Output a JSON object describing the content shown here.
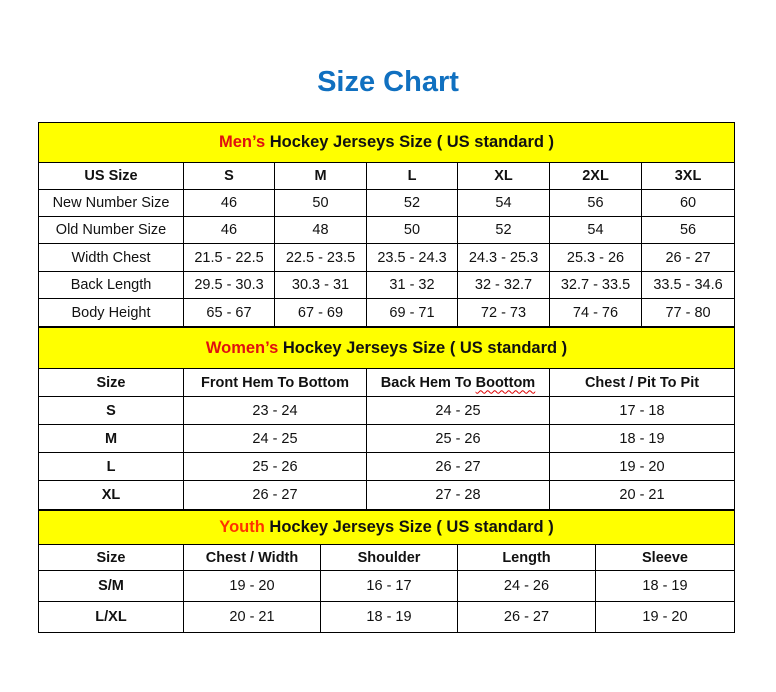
{
  "title": "Size Chart",
  "men": {
    "label_colored": "Men’s",
    "label_rest": " Hockey Jerseys Size ( US standard )",
    "header": [
      "US Size",
      "S",
      "M",
      "L",
      "XL",
      "2XL",
      "3XL"
    ],
    "rows": [
      [
        "New Number Size",
        "46",
        "50",
        "52",
        "54",
        "56",
        "60"
      ],
      [
        "Old Number Size",
        "46",
        "48",
        "50",
        "52",
        "54",
        "56"
      ],
      [
        "Width Chest",
        "21.5 - 22.5",
        "22.5 - 23.5",
        "23.5 - 24.3",
        "24.3 - 25.3",
        "25.3 - 26",
        "26 - 27"
      ],
      [
        "Back Length",
        "29.5 - 30.3",
        "30.3 - 31",
        "31 - 32",
        "32 - 32.7",
        "32.7 - 33.5",
        "33.5 - 34.6"
      ],
      [
        "Body Height",
        "65 - 67",
        "67 - 69",
        "69 - 71",
        "72 - 73",
        "74 - 76",
        "77 - 80"
      ]
    ]
  },
  "women": {
    "label_colored": "Women’s",
    "label_rest": " Hockey Jerseys Size ( US standard )",
    "header": [
      "Size",
      "Front Hem To Bottom",
      "Back Hem To Boottom",
      "Chest / Pit To Pit"
    ],
    "rows": [
      [
        "S",
        "23 - 24",
        "24 - 25",
        "17 - 18"
      ],
      [
        "M",
        "24 - 25",
        "25 - 26",
        "18 - 19"
      ],
      [
        "L",
        "25 - 26",
        "26 - 27",
        "19 - 20"
      ],
      [
        "XL",
        "26 - 27",
        "27 - 28",
        "20 - 21"
      ]
    ]
  },
  "youth": {
    "label_colored": "Youth",
    "label_rest": " Hockey Jerseys Size ( US standard )",
    "header": [
      "Size",
      "Chest / Width",
      "Shoulder",
      "Length",
      "Sleeve"
    ],
    "rows": [
      [
        "S/M",
        "19 - 20",
        "16 - 17",
        "24 - 26",
        "18 - 19"
      ],
      [
        "L/XL",
        "20 - 21",
        "18 - 19",
        "26 - 27",
        "19 - 20"
      ]
    ]
  },
  "colors": {
    "title": "#1070C0",
    "header_bg": "#FFFF00",
    "accent_red": "#E01010",
    "accent_orange": "#FF3300"
  }
}
